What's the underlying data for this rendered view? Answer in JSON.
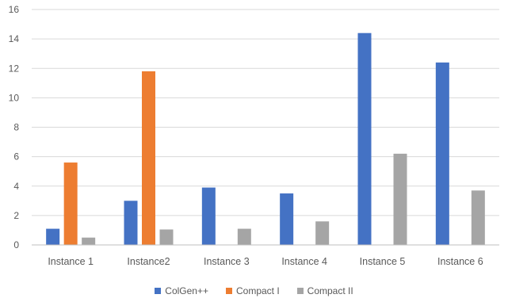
{
  "chart_data": {
    "type": "bar",
    "categories": [
      "Instance 1",
      "Instance2",
      "Instance 3",
      "Instance 4",
      "Instance 5",
      "Instance 6"
    ],
    "series": [
      {
        "name": "ColGen++",
        "color": "#4472C4",
        "values": [
          1.1,
          3.0,
          3.9,
          3.5,
          14.4,
          12.4
        ]
      },
      {
        "name": "Compact I",
        "color": "#ED7D31",
        "values": [
          5.6,
          11.8,
          null,
          null,
          null,
          null
        ]
      },
      {
        "name": "Compact II",
        "color": "#A5A5A5",
        "values": [
          0.5,
          1.05,
          1.1,
          1.6,
          6.2,
          3.7
        ]
      }
    ],
    "yticks": [
      0,
      2,
      4,
      6,
      8,
      10,
      12,
      14,
      16
    ],
    "ylim": [
      0,
      16
    ],
    "grid": true,
    "legend_position": "bottom",
    "title": "",
    "xlabel": "",
    "ylabel": ""
  }
}
